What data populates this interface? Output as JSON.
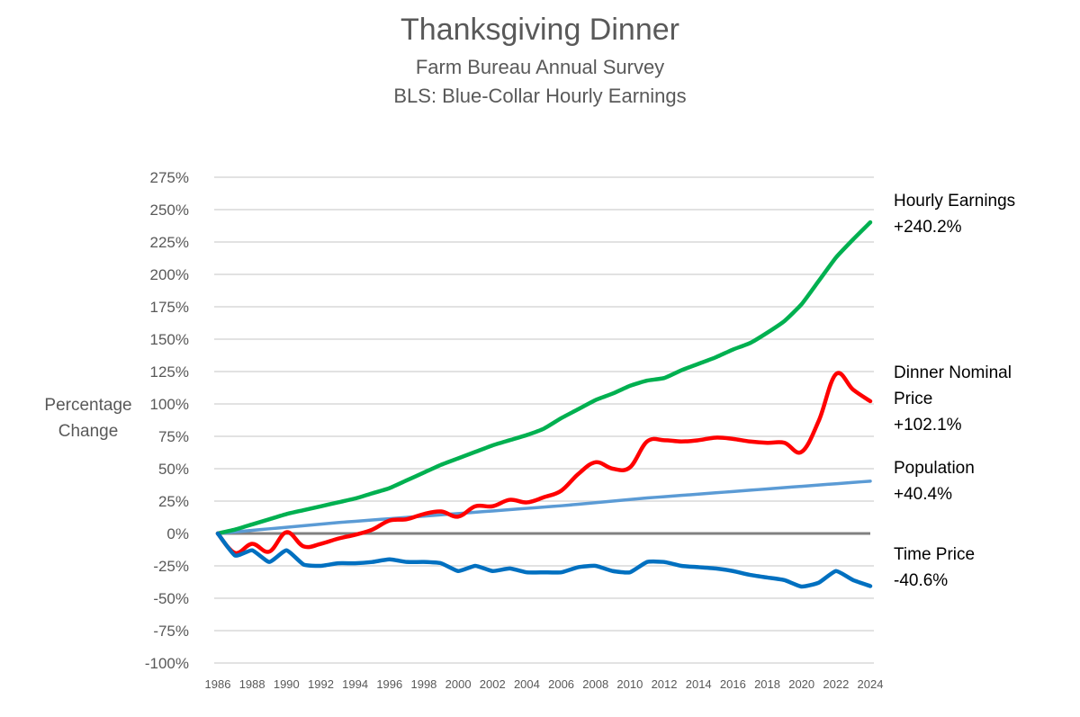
{
  "chart_data": {
    "type": "line",
    "title": "Thanksgiving Dinner",
    "subtitle": [
      "Farm Bureau Annual Survey",
      "BLS: Blue-Collar Hourly Earnings"
    ],
    "xlabel": "",
    "ylabel": "Percentage Change",
    "ylim": [
      -100,
      275
    ],
    "yticks": [
      -100,
      -75,
      -50,
      -25,
      0,
      25,
      50,
      75,
      100,
      125,
      150,
      175,
      200,
      225,
      250,
      275
    ],
    "xlim": [
      1986,
      2024
    ],
    "xticks": [
      1986,
      1988,
      1990,
      1992,
      1994,
      1996,
      1998,
      2000,
      2002,
      2004,
      2006,
      2008,
      2010,
      2012,
      2014,
      2016,
      2018,
      2020,
      2022,
      2024
    ],
    "grid": true,
    "x": [
      1986,
      1987,
      1988,
      1989,
      1990,
      1991,
      1992,
      1993,
      1994,
      1995,
      1996,
      1997,
      1998,
      1999,
      2000,
      2001,
      2002,
      2003,
      2004,
      2005,
      2006,
      2007,
      2008,
      2009,
      2010,
      2011,
      2012,
      2013,
      2014,
      2015,
      2016,
      2017,
      2018,
      2019,
      2020,
      2021,
      2022,
      2023,
      2024
    ],
    "series": [
      {
        "name": "Hourly Earnings",
        "end_label": "+240.2%",
        "color": "#00b050",
        "values": [
          0,
          3,
          7,
          11,
          15,
          18,
          21,
          24,
          27,
          31,
          35,
          41,
          47,
          53,
          58,
          63,
          68,
          72,
          76,
          81,
          89,
          96,
          103,
          108,
          114,
          118,
          120,
          126,
          131,
          136,
          142,
          147,
          155,
          164,
          177,
          195,
          213,
          227,
          240.2
        ]
      },
      {
        "name": "Dinner Nominal Price",
        "end_label": "+102.1%",
        "color": "#ff0000",
        "values": [
          0,
          -15,
          -8,
          -14,
          1,
          -10,
          -8,
          -4,
          -1,
          3,
          10,
          11,
          15,
          17,
          13,
          21,
          21,
          26,
          24,
          28,
          33,
          46,
          55,
          50,
          51,
          71,
          72,
          71,
          72,
          74,
          73,
          71,
          70,
          70,
          63,
          87,
          123,
          111,
          102.1
        ]
      },
      {
        "name": "Population",
        "end_label": "+40.4%",
        "color": "#5b9bd5",
        "values": [
          0,
          1.2,
          2.4,
          3.6,
          4.8,
          6,
          7.2,
          8.4,
          9.4,
          10.4,
          11.4,
          12.4,
          13.4,
          14.4,
          15.4,
          16.4,
          17.4,
          18.4,
          19.4,
          20.4,
          21.4,
          22.6,
          23.8,
          25,
          26.2,
          27.4,
          28.4,
          29.4,
          30.4,
          31.4,
          32.4,
          33.4,
          34.4,
          35.4,
          36.4,
          37.4,
          38.4,
          39.4,
          40.4
        ]
      },
      {
        "name": "Time Price",
        "end_label": "-40.6%",
        "color": "#0070c0",
        "values": [
          0,
          -17,
          -13,
          -22,
          -13,
          -24,
          -25,
          -23,
          -23,
          -22,
          -20,
          -22,
          -22,
          -23,
          -29,
          -25,
          -29,
          -27,
          -30,
          -30,
          -30,
          -26,
          -25,
          -29,
          -30,
          -22,
          -22,
          -25,
          -26,
          -27,
          -29,
          -32,
          -34,
          -36,
          -41,
          -38,
          -29,
          -36,
          -40.6
        ]
      }
    ],
    "zero_line_color": "#808080",
    "legend": "end-labels-right"
  }
}
